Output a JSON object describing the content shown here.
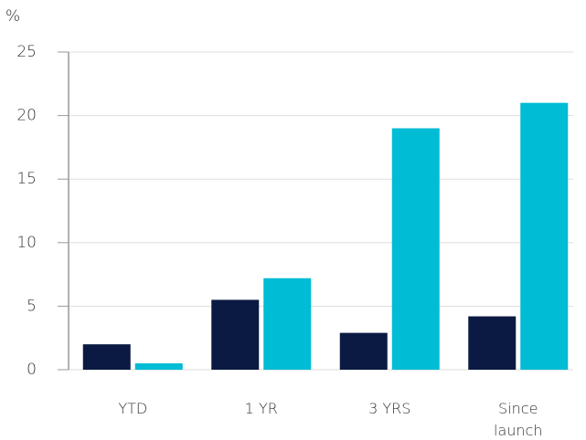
{
  "chart_data": {
    "type": "bar",
    "y_unit": "%",
    "categories": [
      "YTD",
      "1 YR",
      "3 YRS",
      "Since launch"
    ],
    "series": [
      {
        "color": "#0b1a42",
        "values": [
          2.0,
          5.5,
          2.9,
          4.2
        ]
      },
      {
        "color": "#00bcd4",
        "values": [
          0.5,
          7.2,
          19.0,
          21.0
        ]
      }
    ],
    "ylim": [
      0,
      25
    ],
    "yticks": [
      0,
      5,
      10,
      15,
      20,
      25
    ],
    "grid": true
  }
}
